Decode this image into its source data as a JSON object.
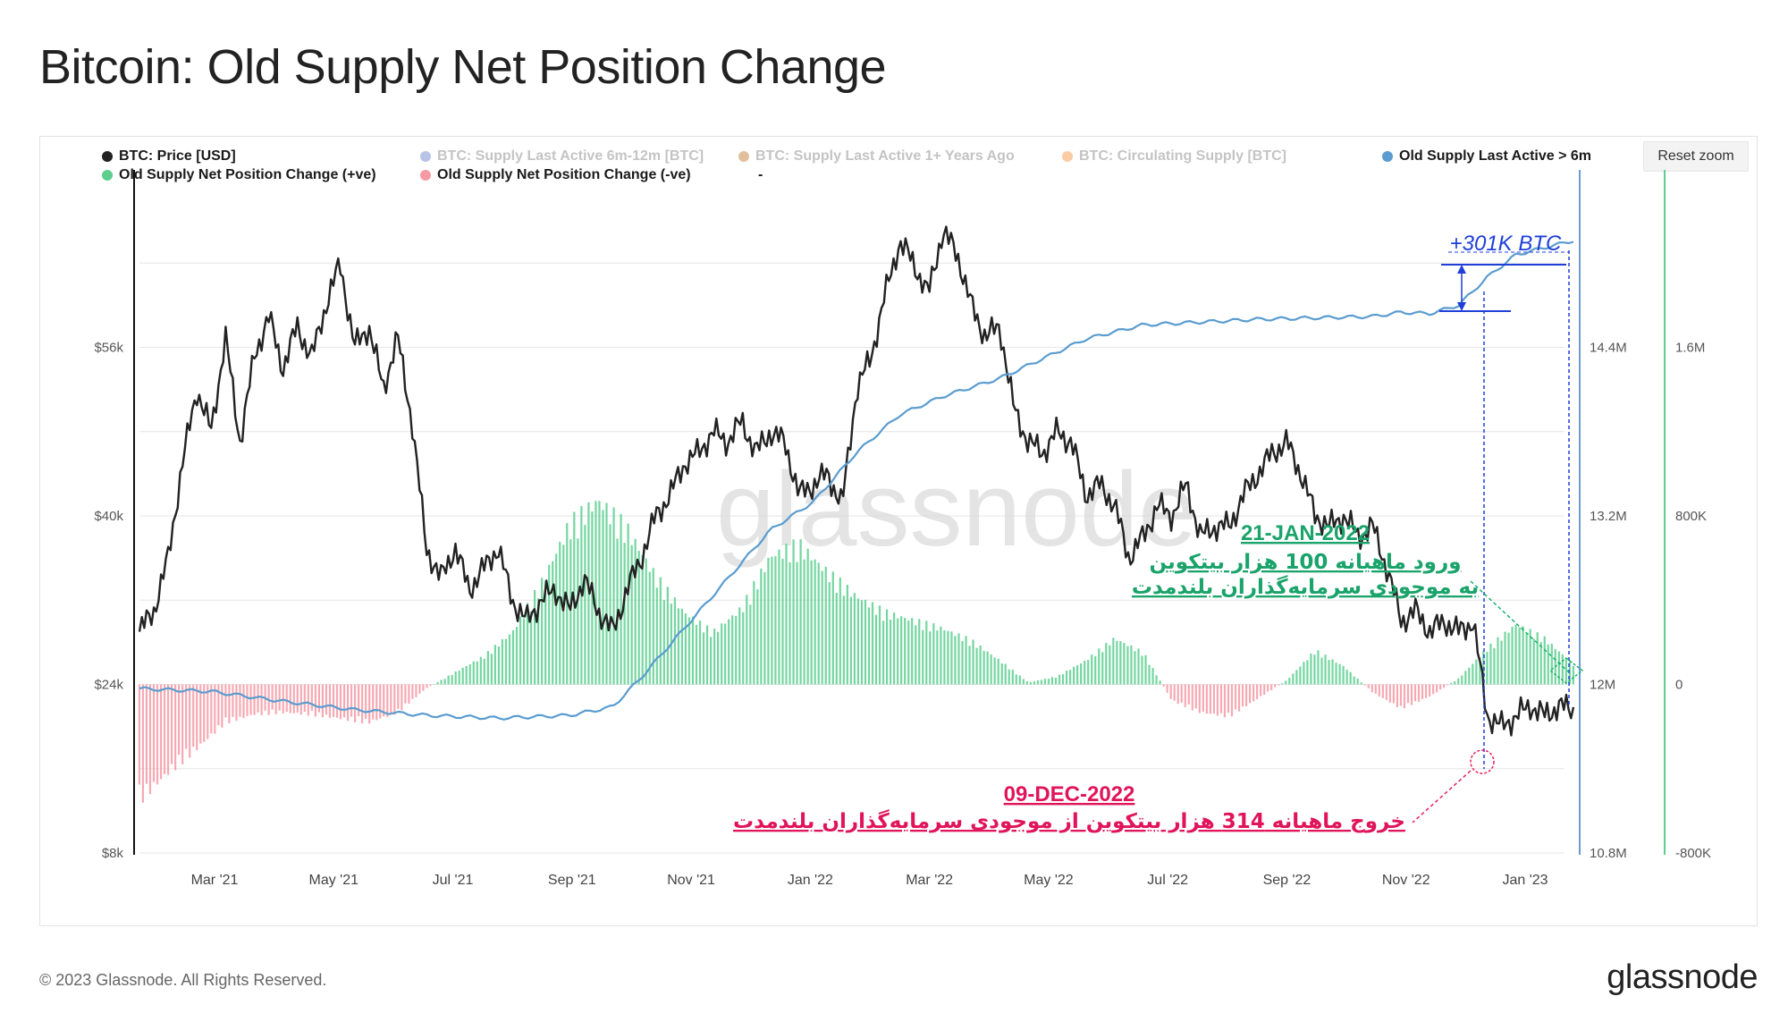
{
  "page": {
    "title": "Bitcoin: Old Supply Net Position Change",
    "footer": "© 2023 Glassnode. All Rights Reserved.",
    "brand": "glassnode",
    "watermark": "glassnode",
    "reset_zoom_label": "Reset zoom"
  },
  "legend": [
    {
      "label": "BTC: Price [USD]",
      "color": "#222222",
      "active": true
    },
    {
      "label": "BTC: Supply Last Active 6m-12m [BTC]",
      "color": "#7b93d6",
      "active": false
    },
    {
      "label": "BTC: Supply Last Active 1+ Years Ago",
      "color": "#c98a4b",
      "active": false
    },
    {
      "label": "BTC: Circulating Supply [BTC]",
      "color": "#f4a259",
      "active": false
    },
    {
      "label": "Old Supply Last Active > 6m",
      "color": "#5a9ccf",
      "active": true
    },
    {
      "label": "Old Supply Net Position Change (+ve)",
      "color": "#5ccf8f",
      "active": true
    },
    {
      "label": "Old Supply Net Position Change (-ve)",
      "color": "#f59aa4",
      "active": true
    },
    {
      "label": "-",
      "color": "",
      "active": true
    }
  ],
  "chart_data": {
    "type": "line",
    "x_ticks": [
      "Mar '21",
      "May '21",
      "Jul '21",
      "Sep '21",
      "Nov '21",
      "Jan '22",
      "Mar '22",
      "May '22",
      "Jul '22",
      "Sep '22",
      "Nov '22",
      "Jan '23"
    ],
    "axes": {
      "price": {
        "ticks": [
          "$8k",
          "$24k",
          "$40k",
          "$56k"
        ],
        "range": [
          8000,
          72000
        ]
      },
      "supply": {
        "ticks": [
          "10.8M",
          "12M",
          "13.2M",
          "14.4M"
        ],
        "range": [
          10800000,
          15600000
        ]
      },
      "net_change": {
        "ticks": [
          "-800K",
          "0",
          "800K",
          "1.6M"
        ],
        "range": [
          -800000,
          2400000
        ]
      }
    },
    "grid": true,
    "annotations": {
      "supply_jump": "+301K BTC",
      "date_green": "21-JAN-2022",
      "green_line1": "ورود ماهیانه 100 هزار بیتکوین",
      "green_line2": "به موجودی سرمایه‌گذاران بلندمدت",
      "date_red": "09-DEC-2022",
      "red_line": "خروج ماهیانه 314 هزار بیتکوین از موجودی سرمایه‌گذاران بلندمدت"
    },
    "series": [
      {
        "name": "BTC: Price [USD]",
        "axis": "price",
        "color": "#222222",
        "points": [
          [
            0.0,
            29000
          ],
          [
            0.01,
            31000
          ],
          [
            0.02,
            36000
          ],
          [
            0.03,
            45000
          ],
          [
            0.04,
            52000
          ],
          [
            0.05,
            48000
          ],
          [
            0.06,
            57000
          ],
          [
            0.07,
            47000
          ],
          [
            0.08,
            55000
          ],
          [
            0.09,
            59000
          ],
          [
            0.1,
            54000
          ],
          [
            0.11,
            58000
          ],
          [
            0.12,
            55000
          ],
          [
            0.13,
            60000
          ],
          [
            0.14,
            64000
          ],
          [
            0.15,
            56000
          ],
          [
            0.16,
            58000
          ],
          [
            0.17,
            52000
          ],
          [
            0.18,
            57000
          ],
          [
            0.19,
            49000
          ],
          [
            0.2,
            37000
          ],
          [
            0.21,
            34000
          ],
          [
            0.22,
            37000
          ],
          [
            0.23,
            33000
          ],
          [
            0.24,
            35000
          ],
          [
            0.25,
            37000
          ],
          [
            0.26,
            32000
          ],
          [
            0.27,
            30000
          ],
          [
            0.28,
            32000
          ],
          [
            0.29,
            33000
          ],
          [
            0.3,
            31000
          ],
          [
            0.31,
            34000
          ],
          [
            0.32,
            31000
          ],
          [
            0.33,
            29000
          ],
          [
            0.34,
            33000
          ],
          [
            0.35,
            36000
          ],
          [
            0.36,
            40000
          ],
          [
            0.37,
            42000
          ],
          [
            0.38,
            45000
          ],
          [
            0.39,
            46000
          ],
          [
            0.4,
            48000
          ],
          [
            0.41,
            47000
          ],
          [
            0.42,
            49000
          ],
          [
            0.43,
            46000
          ],
          [
            0.44,
            48000
          ],
          [
            0.45,
            47000
          ],
          [
            0.46,
            42000
          ],
          [
            0.47,
            43000
          ],
          [
            0.48,
            44000
          ],
          [
            0.49,
            41000
          ],
          [
            0.5,
            52000
          ],
          [
            0.51,
            55000
          ],
          [
            0.52,
            61000
          ],
          [
            0.53,
            66000
          ],
          [
            0.54,
            64000
          ],
          [
            0.55,
            61000
          ],
          [
            0.56,
            67000
          ],
          [
            0.57,
            65000
          ],
          [
            0.58,
            60000
          ],
          [
            0.59,
            57000
          ],
          [
            0.6,
            58000
          ],
          [
            0.61,
            50000
          ],
          [
            0.62,
            47000
          ],
          [
            0.63,
            46000
          ],
          [
            0.64,
            48000
          ],
          [
            0.65,
            47000
          ],
          [
            0.66,
            42000
          ],
          [
            0.67,
            43000
          ],
          [
            0.68,
            41000
          ],
          [
            0.69,
            36000
          ],
          [
            0.7,
            38000
          ],
          [
            0.71,
            41000
          ],
          [
            0.72,
            40000
          ],
          [
            0.73,
            43000
          ],
          [
            0.74,
            38000
          ],
          [
            0.75,
            39000
          ],
          [
            0.76,
            39000
          ],
          [
            0.77,
            42000
          ],
          [
            0.78,
            44000
          ],
          [
            0.79,
            46000
          ],
          [
            0.8,
            47000
          ],
          [
            0.81,
            44000
          ],
          [
            0.82,
            40000
          ],
          [
            0.83,
            39000
          ],
          [
            0.84,
            40000
          ],
          [
            0.85,
            38000
          ],
          [
            0.86,
            39000
          ],
          [
            0.87,
            35000
          ],
          [
            0.88,
            30000
          ],
          [
            0.89,
            31000
          ],
          [
            0.9,
            29000
          ],
          [
            0.91,
            30000
          ],
          [
            0.92,
            29000
          ],
          [
            0.93,
            30000
          ],
          [
            0.94,
            21000
          ],
          [
            0.95,
            20000
          ],
          [
            0.96,
            21000
          ],
          [
            0.97,
            22000
          ],
          [
            0.98,
            21000
          ],
          [
            0.99,
            22000
          ],
          [
            1.0,
            21500
          ]
        ]
      },
      {
        "name": "Old Supply Last Active > 6m",
        "axis": "supply",
        "color": "#5a9ccf",
        "points": [
          [
            0.0,
            11970000
          ],
          [
            0.05,
            11950000
          ],
          [
            0.1,
            11880000
          ],
          [
            0.15,
            11820000
          ],
          [
            0.2,
            11780000
          ],
          [
            0.25,
            11760000
          ],
          [
            0.3,
            11780000
          ],
          [
            0.33,
            11840000
          ],
          [
            0.35,
            12050000
          ],
          [
            0.38,
            12400000
          ],
          [
            0.41,
            12750000
          ],
          [
            0.44,
            13100000
          ],
          [
            0.47,
            13300000
          ],
          [
            0.5,
            13650000
          ],
          [
            0.53,
            13920000
          ],
          [
            0.56,
            14050000
          ],
          [
            0.6,
            14180000
          ],
          [
            0.63,
            14320000
          ],
          [
            0.66,
            14460000
          ],
          [
            0.7,
            14560000
          ],
          [
            0.74,
            14580000
          ],
          [
            0.78,
            14600000
          ],
          [
            0.82,
            14610000
          ],
          [
            0.86,
            14620000
          ],
          [
            0.88,
            14650000
          ],
          [
            0.9,
            14640000
          ],
          [
            0.92,
            14700000
          ],
          [
            0.94,
            14900000
          ],
          [
            0.96,
            15060000
          ],
          [
            1.0,
            15160000
          ]
        ]
      }
    ],
    "bars": {
      "name": "Old Supply Net Position Change",
      "axis": "net_change",
      "positive_color": "#5ccf8f",
      "negative_color": "#f59aa4",
      "points": [
        [
          0.0,
          -580000
        ],
        [
          0.02,
          -440000
        ],
        [
          0.04,
          -320000
        ],
        [
          0.06,
          -190000
        ],
        [
          0.08,
          -150000
        ],
        [
          0.1,
          -140000
        ],
        [
          0.12,
          -150000
        ],
        [
          0.14,
          -170000
        ],
        [
          0.16,
          -190000
        ],
        [
          0.18,
          -140000
        ],
        [
          0.2,
          -20000
        ],
        [
          0.22,
          60000
        ],
        [
          0.24,
          140000
        ],
        [
          0.26,
          260000
        ],
        [
          0.28,
          500000
        ],
        [
          0.3,
          800000
        ],
        [
          0.32,
          920000
        ],
        [
          0.34,
          780000
        ],
        [
          0.36,
          540000
        ],
        [
          0.38,
          360000
        ],
        [
          0.4,
          260000
        ],
        [
          0.42,
          380000
        ],
        [
          0.44,
          640000
        ],
        [
          0.46,
          700000
        ],
        [
          0.48,
          560000
        ],
        [
          0.5,
          440000
        ],
        [
          0.52,
          360000
        ],
        [
          0.54,
          320000
        ],
        [
          0.56,
          280000
        ],
        [
          0.58,
          220000
        ],
        [
          0.6,
          120000
        ],
        [
          0.62,
          10000
        ],
        [
          0.64,
          40000
        ],
        [
          0.66,
          120000
        ],
        [
          0.68,
          230000
        ],
        [
          0.7,
          160000
        ],
        [
          0.72,
          -80000
        ],
        [
          0.74,
          -140000
        ],
        [
          0.76,
          -160000
        ],
        [
          0.78,
          -70000
        ],
        [
          0.8,
          20000
        ],
        [
          0.82,
          170000
        ],
        [
          0.84,
          90000
        ],
        [
          0.86,
          -40000
        ],
        [
          0.88,
          -120000
        ],
        [
          0.9,
          -60000
        ],
        [
          0.92,
          30000
        ],
        [
          0.94,
          180000
        ],
        [
          0.96,
          300000
        ],
        [
          0.98,
          230000
        ],
        [
          1.0,
          100000
        ]
      ]
    }
  }
}
